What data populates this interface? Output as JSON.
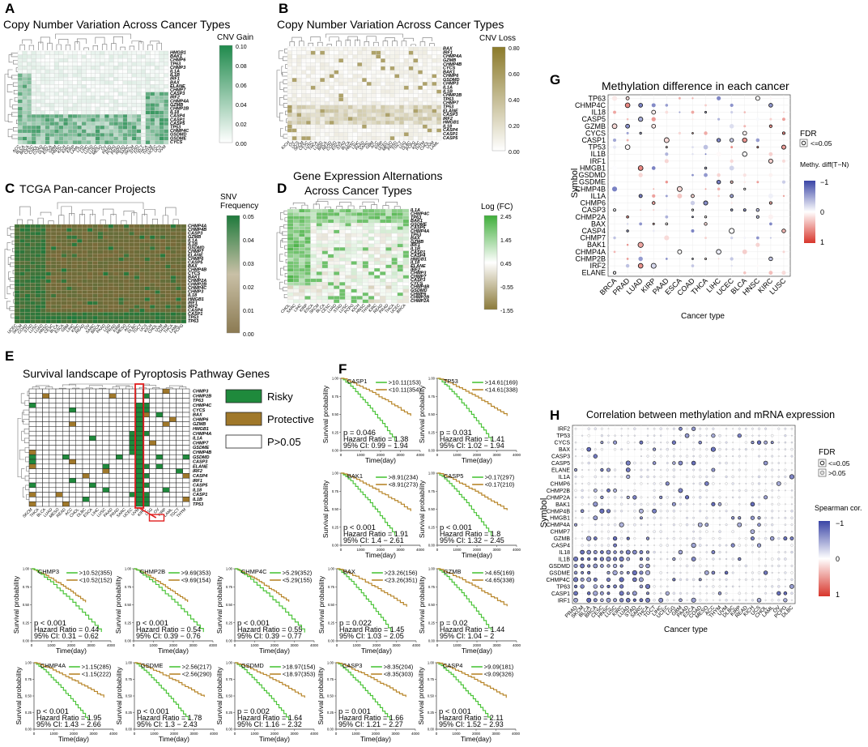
{
  "panels": {
    "A": {
      "letter": "A",
      "title": "Copy Number Variation Across Cancer Types",
      "legend_title": "CNV Gain",
      "ticks": [
        "0.10",
        "0.08",
        "0.06",
        "0.04",
        "0.02",
        "0.00"
      ],
      "genes": [
        "HMGB1",
        "BAK1",
        "CHMP6",
        "TP63",
        "CHMP3",
        "IL1A",
        "IL1B",
        "IRF1",
        "BAX",
        "ELANE",
        "CHMP7",
        "CASP3",
        "IRF2",
        "CHMP4A",
        "GZMB",
        "CHMP2B",
        "IL18",
        "CASP4",
        "CASP1",
        "CASP5",
        "TP53",
        "CHMP4C",
        "GSDMD",
        "GSDME",
        "CYCS"
      ],
      "cancers": [
        "ACC",
        "BLCA",
        "BRCA",
        "CESC",
        "CHOL",
        "COAD",
        "DLBC",
        "ESCA",
        "GBM",
        "HNSC",
        "KICH",
        "KIRC",
        "KIRP",
        "LAML",
        "LGG",
        "LIHC",
        "LUAD",
        "LUSC",
        "MESO",
        "OV",
        "PAAD",
        "PCPG",
        "PRAD",
        "READ",
        "SARC",
        "SKCM",
        "STAD",
        "TGCT",
        "THCA",
        "THYM",
        "UCEC",
        "UCS",
        "UVM"
      ],
      "color_low": "#ffffff",
      "color_high": "#1f8a4c"
    },
    "B": {
      "letter": "B",
      "title": "Copy Number Variation Across Cancer Types",
      "legend_title": "CNV Loss",
      "ticks": [
        "0.80",
        "0.60",
        "0.40",
        "0.20",
        "0.00"
      ],
      "genes": [
        "BAX",
        "IRF1",
        "CHMP4A",
        "GZMB",
        "CHMP4B",
        "CYCS",
        "BAK1",
        "CHMP6",
        "GSDMD",
        "CHMP3",
        "IL1A",
        "IL1B",
        "CHMP2B",
        "TP63",
        "CHMP7",
        "TP53",
        "ELANE",
        "CASP3",
        "IRF2",
        "HMGB1",
        "IL18",
        "CASP4",
        "CASP1",
        "CASP5"
      ],
      "cancers": [
        "KICH",
        "OV",
        "UCS",
        "SKCM",
        "CESC",
        "LUSC",
        "THCA",
        "LUAD",
        "BRCA",
        "READ",
        "COAD",
        "ESCA",
        "STAD",
        "BLCA",
        "HNSC",
        "LIHC",
        "PAAD",
        "SARC",
        "GBM",
        "ACC",
        "KIRP",
        "UCEC",
        "MESO",
        "PRAD",
        "TGCT",
        "LGG",
        "DLBC",
        "PCPG",
        "KIRC",
        "THYM",
        "CHOL",
        "UVM",
        "LAML"
      ],
      "color_low": "#ffffff",
      "color_high": "#8b7a2a"
    },
    "C": {
      "letter": "C",
      "title": "TCGA Pan-cancer Projects",
      "legend_title": "SNV Frequency",
      "ticks": [
        "0.05",
        "0.04",
        "0.03",
        "0.02",
        "0.01",
        "0.00"
      ],
      "genes": [
        "CHMP4A",
        "CHMP4B",
        "CASP3",
        "GZMB",
        "IL1A",
        "IL1B",
        "GSDMD",
        "CHMP7",
        "ELANE",
        "CHMP6",
        "CASP5",
        "BAX",
        "CHMP4B",
        "CYCS",
        "BAK1",
        "CHMP2A",
        "CHMP2B",
        "CHMP4C",
        "CHMP3",
        "IL18",
        "HMGB1",
        "IRF1",
        "IRF2",
        "CASP4",
        "CASP1",
        "TP53",
        "TP63"
      ],
      "cancers": [
        "UCEC",
        "SKCM",
        "COAD",
        "STAD",
        "LUSC",
        "LUAD",
        "HNSC",
        "CESC",
        "BLCA",
        "ESCA",
        "GBM",
        "LIHC",
        "KIRC",
        "READ",
        "OV",
        "SARC",
        "BRCA",
        "PAAD",
        "LGG",
        "PRAD",
        "KIRP",
        "MESO",
        "ACC",
        "DLBC",
        "TGCT",
        "UCS",
        "KICH",
        "CHOL",
        "UVM",
        "THYM",
        "THCA",
        "LAML",
        "PCPG"
      ],
      "color_low": "#7a6a3a",
      "color_high": "#1f7a3c"
    },
    "D": {
      "letter": "D",
      "title_line1": "Gene Expression Alternations",
      "title_line2": "Across Cancer Types",
      "legend_title": "Log (FC)",
      "ticks": [
        "2.45",
        "1.45",
        "0.45",
        "-0.55",
        "-1.55"
      ],
      "genes": [
        "IL1A",
        "CHMP4C",
        "TP63",
        "BAK1",
        "GSDME",
        "CASP5",
        "CHMP4A",
        "TP53",
        "BAX",
        "GZMB",
        "IRF1",
        "IL1B",
        "CASP1",
        "CASP4",
        "HMGB1",
        "IL18",
        "ELANE",
        "IRF2",
        "CHMP3",
        "CHMP7",
        "CASP3",
        "CYCS",
        "CHMP4B",
        "GSDMD",
        "CHMP6",
        "CHMP2B",
        "CHMP2A"
      ],
      "cancers": [
        "CHOL",
        "SARC",
        "LIHC",
        "KIRP",
        "ESCA",
        "SKCM",
        "BLCA",
        "CESC",
        "LUAD",
        "STAD",
        "LUSC",
        "PCPG",
        "KICH",
        "HNSC",
        "THYM",
        "KIRC",
        "READ",
        "PRAD",
        "THCA",
        "UCEC",
        "BRCA"
      ],
      "color_low": "#8b7a3a",
      "color_high": "#3fae3a"
    },
    "E": {
      "letter": "E",
      "title": "Survival landscape of Pyroptosis Pathway Genes",
      "legend": [
        {
          "label": "Risky",
          "color": "#1f8a3c"
        },
        {
          "label": "Protective",
          "color": "#a0782a"
        },
        {
          "label": "P>0.05",
          "color": "#ffffff"
        }
      ],
      "genes": [
        "CHMP3",
        "CHMP2B",
        "TP63",
        "CHMP4C",
        "CYCS",
        "BAX",
        "CHMP6",
        "GZMB",
        "HMGB1",
        "CHMP4A",
        "IL1A",
        "CHMP7",
        "GSDME",
        "CHMP4B",
        "GSDMD",
        "CASP3",
        "ELANE",
        "IRF2",
        "CASP4",
        "IRF1",
        "CASP5",
        "IL18",
        "CASP1",
        "IL1B",
        "TP53"
      ],
      "cancers": [
        "SKCM",
        "THCA",
        "BLCA",
        "LUAD",
        "MESO",
        "READ",
        "ACC",
        "CHOL",
        "DLBC",
        "ESCA",
        "LIHC",
        "LUSC",
        "PAAD",
        "PRAD",
        "SARC",
        "UCEC",
        "UVM",
        "KIRC",
        "LGG",
        "OV",
        "KIRP",
        "LAML",
        "TGCT",
        "THYM"
      ]
    },
    "F": {
      "letter": "F"
    },
    "G": {
      "letter": "G",
      "title": "Methylation difference in each cancer",
      "ylabel": "Symbol",
      "xlabel": "Cancer type",
      "fdr_title": "FDR",
      "fdr_item": "<=0.05",
      "grad_title": "Methy. diff(T−N)",
      "grad_ticks": [
        "−1",
        "0",
        "1"
      ],
      "genes": [
        "TP63",
        "CHMP4C",
        "IL18",
        "CASP5",
        "GZMB",
        "CYCS",
        "CASP1",
        "TP53",
        "IL1B",
        "IRF1",
        "HMGB1",
        "GSDMD",
        "GSDME",
        "CHMP4B",
        "IL1A",
        "CHMP6",
        "CASP3",
        "CHMP2A",
        "BAX",
        "CASP4",
        "CHMP7",
        "BAK1",
        "CHMP4A",
        "CHMP2B",
        "IRF2",
        "ELANE"
      ],
      "cancers": [
        "BRCA",
        "PRAD",
        "LUAD",
        "KIRP",
        "PAAD",
        "ESCA",
        "COAD",
        "THCA",
        "LIHC",
        "UCEC",
        "BLCA",
        "HNSC",
        "KIRC",
        "LUSC"
      ]
    },
    "H": {
      "letter": "H",
      "title": "Correlation between methylation and mRNA expression",
      "ylabel": "Symbol",
      "xlabel": "Cancer type",
      "fdr_title": "FDR",
      "fdr_items": [
        "<=0.05",
        ">0.05"
      ],
      "grad_title": "Spearman cor.",
      "grad_ticks": [
        "−1",
        "0",
        "1"
      ],
      "genes": [
        "IRF2",
        "TP53",
        "CYCS",
        "BAX",
        "CASP3",
        "CASP5",
        "ELANE",
        "IL1A",
        "CHMP6",
        "CHMP2B",
        "CHMP2A",
        "BAK1",
        "CHMP4B",
        "HMGB1",
        "CHMP4A",
        "CHMP7",
        "GZMB",
        "CASP4",
        "IL18",
        "IL1B",
        "GSDMD",
        "GSDME",
        "CHMP4C",
        "TP63",
        "CASP1",
        "IRF1"
      ],
      "cancers": [
        "PRAD",
        "SKCM",
        "BLCA",
        "BRCA",
        "CESC",
        "HNSC",
        "LUSC",
        "KIRC",
        "LUAD",
        "STAD",
        "SARC",
        "THCA",
        "TGCT",
        "LIHC",
        "UCEC",
        "LGG",
        "GBM",
        "PAAD",
        "ESCA",
        "COAD",
        "MESO",
        "ACC",
        "THYM",
        "UVM",
        "DLBC",
        "KIRP",
        "READ",
        "KICH",
        "UCS",
        "CHOL",
        "LAML",
        "OV",
        "PCPG",
        "DLBC"
      ]
    }
  },
  "km_common": {
    "ylabel": "Survival probability",
    "xlabel": "Time(day)",
    "xticks": [
      "0",
      "1000",
      "2000",
      "3000",
      "4000"
    ],
    "yticks": [
      "0.00",
      "0.25",
      "0.50",
      "0.75",
      "1.00"
    ],
    "high_color": "#4cc43a",
    "low_color": "#b8862a"
  },
  "km_plots": [
    {
      "gene": "CASP1",
      "hi": ">10.11(153)",
      "lo": "<10.11(354)",
      "p": "p = 0.046",
      "hr": "Hazard Ratio = 1.38",
      "ci": "95% CI: 0.99 − 1.94"
    },
    {
      "gene": "TP53",
      "hi": ">14.61(169)",
      "lo": "<14.61(338)",
      "p": "p = 0.031",
      "hr": "Hazard Ratio = 1.41",
      "ci": "95% CI: 1.02 − 1.94"
    },
    {
      "gene": "BAK1",
      "hi": ">8.91(234)",
      "lo": "<8.91(273)",
      "p": "p < 0.001",
      "hr": "Hazard Ratio = 1.91",
      "ci": "95% CI: 1.4 − 2.61"
    },
    {
      "gene": "CASP5",
      "hi": ">0.17(297)",
      "lo": "<0.17(210)",
      "p": "p < 0.001",
      "hr": "Hazard Ratio = 1.8",
      "ci": "95% CI: 1.32 − 2.45"
    },
    {
      "gene": "CHMP3",
      "hi": ">10.52(355)",
      "lo": "<10.52(152)",
      "p": "p < 0.001",
      "hr": "Hazard Ratio = 0.44",
      "ci": "95% CI: 0.31 − 0.62"
    },
    {
      "gene": "CHMP2B",
      "hi": ">9.69(353)",
      "lo": "<9.69(154)",
      "p": "p < 0.001",
      "hr": "Hazard Ratio = 0.54",
      "ci": "95% CI: 0.39 − 0.76"
    },
    {
      "gene": "CHMP4C",
      "hi": ">5.29(352)",
      "lo": "<5.29(155)",
      "p": "p < 0.001",
      "hr": "Hazard Ratio = 0.55",
      "ci": "95% CI: 0.39 − 0.77"
    },
    {
      "gene": "BAX",
      "hi": ">23.26(156)",
      "lo": "<23.26(351)",
      "p": "p = 0.022",
      "hr": "Hazard Ratio = 1.45",
      "ci": "95% CI: 1.03 − 2.05"
    },
    {
      "gene": "GZMB",
      "hi": ">4.65(169)",
      "lo": "<4.65(338)",
      "p": "p = 0.02",
      "hr": "Hazard Ratio = 1.44",
      "ci": "95% CI: 1.04 − 2"
    },
    {
      "gene": "CHMP4A",
      "hi": ">1.15(285)",
      "lo": "<1.15(222)",
      "p": "p < 0.001",
      "hr": "Hazard Ratio = 1.95",
      "ci": "95% CI: 1.43 − 2.66"
    },
    {
      "gene": "GSDME",
      "hi": ">2.56(217)",
      "lo": "<2.56(290)",
      "p": "p < 0.001",
      "hr": "Hazard Ratio = 1.78",
      "ci": "95% CI: 1.3 − 2.43"
    },
    {
      "gene": "GSDMD",
      "hi": ">18.97(154)",
      "lo": "<18.97(353)",
      "p": "p = 0.002",
      "hr": "Hazard Ratio = 1.64",
      "ci": "95% CI: 1.16 − 2.32"
    },
    {
      "gene": "CASP3",
      "hi": ">8.35(204)",
      "lo": "<8.35(303)",
      "p": "p = 0.001",
      "hr": "Hazard Ratio = 1.66",
      "ci": "95% CI: 1.21 − 2.27"
    },
    {
      "gene": "CASP4",
      "hi": ">9.09(181)",
      "lo": "<9.09(326)",
      "p": "p < 0.001",
      "hr": "Hazard Ratio = 2.11",
      "ci": "95% CI: 1.52 − 2.93"
    }
  ],
  "chart_data": [
    {
      "type": "heatmap",
      "panel": "A",
      "title": "Copy Number Variation Across Cancer Types",
      "legend": "CNV Gain",
      "range": [
        0,
        0.1
      ]
    },
    {
      "type": "heatmap",
      "panel": "B",
      "title": "Copy Number Variation Across Cancer Types",
      "legend": "CNV Loss",
      "range": [
        0,
        0.8
      ]
    },
    {
      "type": "heatmap",
      "panel": "C",
      "title": "TCGA Pan-cancer Projects",
      "legend": "SNV Frequency",
      "range": [
        0,
        0.05
      ]
    },
    {
      "type": "heatmap",
      "panel": "D",
      "title": "Gene Expression Alternations Across Cancer Types",
      "legend": "Log (FC)",
      "range": [
        -1.55,
        2.45
      ]
    },
    {
      "type": "heatmap",
      "panel": "E",
      "title": "Survival landscape of Pyroptosis Pathway Genes",
      "categories": [
        "Risky",
        "Protective",
        "P>0.05"
      ]
    },
    {
      "type": "line",
      "panel": "F",
      "xlabel": "Time(day)",
      "ylabel": "Survival probability",
      "xlim": [
        0,
        4000
      ],
      "ylim": [
        0,
        1
      ]
    },
    {
      "type": "scatter",
      "panel": "G",
      "title": "Methylation difference in each cancer",
      "xlabel": "Cancer type",
      "ylabel": "Symbol",
      "colorrange": [
        -1,
        1
      ]
    },
    {
      "type": "scatter",
      "panel": "H",
      "title": "Correlation between methylation and mRNA expression",
      "xlabel": "Cancer type",
      "ylabel": "Symbol",
      "colorrange": [
        -1,
        1
      ]
    }
  ]
}
